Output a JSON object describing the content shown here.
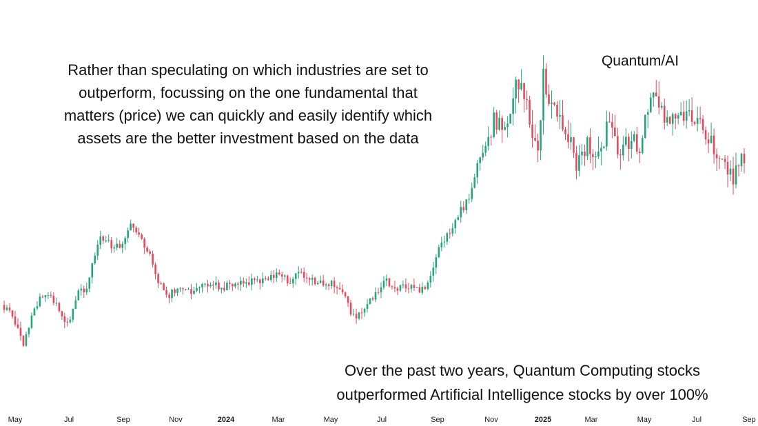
{
  "chart_data": {
    "type": "candlestick",
    "title": "Quantum/AI",
    "xlabel": "",
    "ylabel": "",
    "grid": false,
    "x_ticks": [
      "May",
      "Jul",
      "Sep",
      "Nov",
      "2024",
      "Mar",
      "May",
      "Jul",
      "Sep",
      "Nov",
      "2025",
      "Mar",
      "May",
      "Jul",
      "Sep"
    ],
    "x_ticks_bold": [
      "2024",
      "2025"
    ],
    "ylim": [
      0,
      100
    ],
    "up_color": "#22a67a",
    "down_color": "#e8485a",
    "series": [
      {
        "name": "Quantum/AI ratio",
        "points": [
          {
            "t": 0,
            "v": 24
          },
          {
            "t": 4,
            "v": 21
          },
          {
            "t": 8,
            "v": 12
          },
          {
            "t": 12,
            "v": 22
          },
          {
            "t": 16,
            "v": 28
          },
          {
            "t": 20,
            "v": 25
          },
          {
            "t": 24,
            "v": 17
          },
          {
            "t": 28,
            "v": 27
          },
          {
            "t": 32,
            "v": 30
          },
          {
            "t": 36,
            "v": 44
          },
          {
            "t": 40,
            "v": 42
          },
          {
            "t": 44,
            "v": 41
          },
          {
            "t": 48,
            "v": 48
          },
          {
            "t": 50,
            "v": 46
          },
          {
            "t": 54,
            "v": 40
          },
          {
            "t": 58,
            "v": 30
          },
          {
            "t": 62,
            "v": 27
          },
          {
            "t": 66,
            "v": 29
          },
          {
            "t": 70,
            "v": 28
          },
          {
            "t": 74,
            "v": 31
          },
          {
            "t": 78,
            "v": 30
          },
          {
            "t": 82,
            "v": 29
          },
          {
            "t": 86,
            "v": 31
          },
          {
            "t": 90,
            "v": 30
          },
          {
            "t": 94,
            "v": 32
          },
          {
            "t": 98,
            "v": 31
          },
          {
            "t": 102,
            "v": 33
          },
          {
            "t": 106,
            "v": 31
          },
          {
            "t": 110,
            "v": 34
          },
          {
            "t": 114,
            "v": 32
          },
          {
            "t": 118,
            "v": 30
          },
          {
            "t": 122,
            "v": 30
          },
          {
            "t": 126,
            "v": 28
          },
          {
            "t": 130,
            "v": 20
          },
          {
            "t": 134,
            "v": 23
          },
          {
            "t": 138,
            "v": 28
          },
          {
            "t": 142,
            "v": 31
          },
          {
            "t": 146,
            "v": 29
          },
          {
            "t": 150,
            "v": 30
          },
          {
            "t": 154,
            "v": 28
          },
          {
            "t": 158,
            "v": 31
          },
          {
            "t": 160,
            "v": 38
          },
          {
            "t": 164,
            "v": 44
          },
          {
            "t": 168,
            "v": 50
          },
          {
            "t": 172,
            "v": 55
          },
          {
            "t": 176,
            "v": 66
          },
          {
            "t": 180,
            "v": 73
          },
          {
            "t": 182,
            "v": 80
          },
          {
            "t": 184,
            "v": 76
          },
          {
            "t": 188,
            "v": 82
          },
          {
            "t": 190,
            "v": 90
          },
          {
            "t": 194,
            "v": 84
          },
          {
            "t": 196,
            "v": 75
          },
          {
            "t": 198,
            "v": 72
          },
          {
            "t": 200,
            "v": 92
          },
          {
            "t": 202,
            "v": 84
          },
          {
            "t": 206,
            "v": 80
          },
          {
            "t": 210,
            "v": 72
          },
          {
            "t": 212,
            "v": 66
          },
          {
            "t": 216,
            "v": 72
          },
          {
            "t": 220,
            "v": 68
          },
          {
            "t": 224,
            "v": 78
          },
          {
            "t": 228,
            "v": 67
          },
          {
            "t": 232,
            "v": 74
          },
          {
            "t": 236,
            "v": 71
          },
          {
            "t": 240,
            "v": 90
          },
          {
            "t": 242,
            "v": 82
          },
          {
            "t": 246,
            "v": 79
          },
          {
            "t": 250,
            "v": 78
          },
          {
            "t": 254,
            "v": 82
          },
          {
            "t": 258,
            "v": 76
          },
          {
            "t": 262,
            "v": 73
          },
          {
            "t": 266,
            "v": 65
          },
          {
            "t": 270,
            "v": 62
          },
          {
            "t": 272,
            "v": 66
          },
          {
            "t": 274,
            "v": 67
          }
        ]
      }
    ],
    "annotations": [
      {
        "text_lines": [
          "Rather than speculating on which industries are set to",
          "outperform, focussing on the one fundamental that",
          "matters (price) we can quickly and easily identify which",
          "assets are the better investment based on the data"
        ]
      },
      {
        "text_lines": [
          "Over the past two years, Quantum Computing stocks",
          "outperformed Artificial Intelligence stocks by over 100%"
        ]
      }
    ]
  }
}
